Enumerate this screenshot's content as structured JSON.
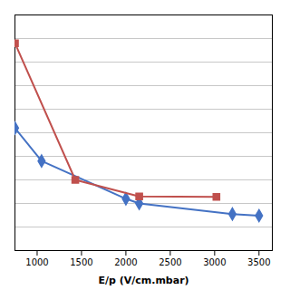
{
  "chart_data": {
    "type": "line",
    "xlabel": "E/p (V/cm.mbar)",
    "series": [
      {
        "color": "#4472C4",
        "marker": "diamond",
        "x": [
          750,
          1050,
          2000,
          2150,
          3200,
          3500
        ],
        "values": [
          0.52,
          0.38,
          0.22,
          0.2,
          0.155,
          0.148
        ]
      },
      {
        "color": "#C0504D",
        "marker": "square",
        "x": [
          750,
          1430,
          2150,
          3020
        ],
        "values": [
          0.88,
          0.3,
          0.23,
          0.228
        ]
      }
    ],
    "xlim": [
      750,
      3650
    ],
    "ylim": [
      0.0,
      1.0
    ],
    "xticks": [
      1000,
      1500,
      2000,
      2500,
      3000,
      3500
    ],
    "yticks": [
      0,
      0.1,
      0.2,
      0.3,
      0.4,
      0.5,
      0.6,
      0.7,
      0.8,
      0.9,
      1.0
    ],
    "grid": true,
    "tick_labels": "x"
  }
}
